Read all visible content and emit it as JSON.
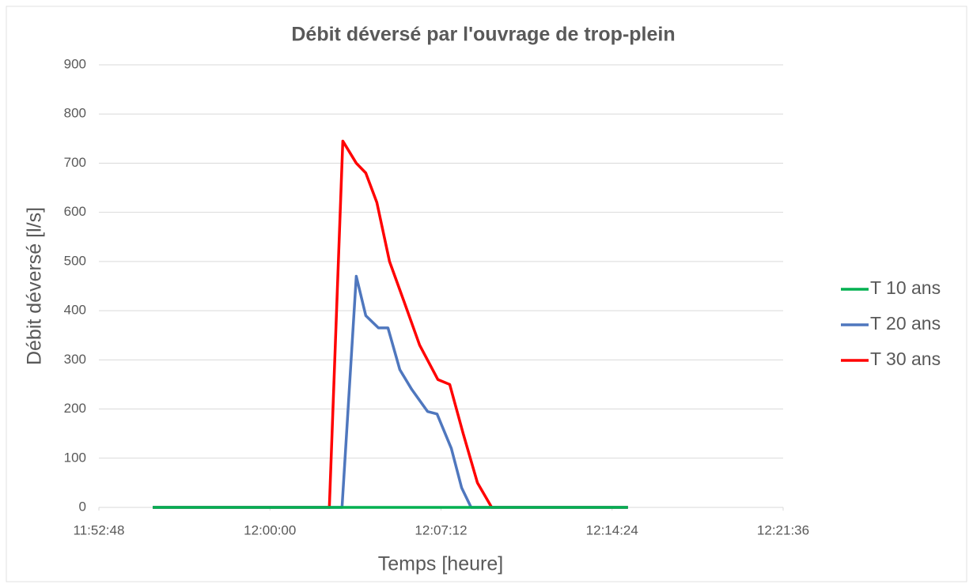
{
  "chart_data": {
    "type": "line",
    "title": "Débit déversé par l'ouvrage de trop-plein",
    "x_label": "Temps [heure]",
    "y_label": "Débit déversé [l/s]",
    "xlim": [
      "11:52:48",
      "12:21:36"
    ],
    "xticks": [
      "11:52:48",
      "12:00:00",
      "12:07:12",
      "12:14:24",
      "12:21:36"
    ],
    "ylim": [
      0,
      900
    ],
    "yticks": [
      0,
      100,
      200,
      300,
      400,
      500,
      600,
      700,
      800,
      900
    ],
    "grid": true,
    "legend": "right",
    "series": [
      {
        "name": "T 10 ans",
        "color": "#00b050",
        "x": [
          "11:55:04",
          "12:15:04"
        ],
        "values": [
          0,
          0
        ]
      },
      {
        "name": "T 20 ans",
        "color": "#4f77be",
        "x": [
          "11:55:04",
          "12:03:02",
          "12:03:38",
          "12:04:02",
          "12:04:34",
          "12:04:58",
          "12:05:28",
          "12:05:58",
          "12:06:38",
          "12:07:02",
          "12:07:38",
          "12:08:04",
          "12:08:28",
          "12:15:04"
        ],
        "values": [
          0,
          0,
          470,
          390,
          365,
          365,
          280,
          240,
          195,
          190,
          120,
          40,
          0,
          0
        ]
      },
      {
        "name": "T 30 ans",
        "color": "#ff0000",
        "x": [
          "11:55:04",
          "12:02:30",
          "12:03:04",
          "12:03:38",
          "12:04:02",
          "12:04:30",
          "12:05:02",
          "12:05:38",
          "12:06:18",
          "12:07:04",
          "12:07:34",
          "12:08:08",
          "12:08:44",
          "12:09:20",
          "12:15:04"
        ],
        "values": [
          0,
          0,
          745,
          700,
          680,
          620,
          500,
          420,
          330,
          260,
          250,
          150,
          50,
          0,
          0
        ]
      }
    ]
  }
}
